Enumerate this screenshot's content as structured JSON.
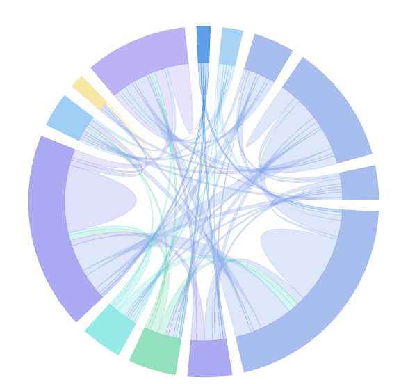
{
  "chart_data": {
    "type": "chord",
    "colors": [
      "#2a7de1",
      "#8cc4f0",
      "#8aa8ea",
      "#8aa8ea",
      "#8aa8ea",
      "#8aa8ea",
      "#8f8ff0",
      "#6dd6a8",
      "#6fe3df",
      "#8f8ff0",
      "#7fbff0",
      "#f5e08a",
      "#a79af0"
    ],
    "matrix": [
      [
        0,
        0,
        0,
        0,
        0,
        1,
        1,
        1,
        0,
        1,
        0,
        0,
        0
      ],
      [
        0,
        0,
        0,
        0,
        0,
        2,
        1,
        0,
        1,
        0,
        1,
        0,
        1
      ],
      [
        0,
        1,
        0,
        0,
        1,
        3,
        0,
        1,
        0,
        3,
        1,
        0,
        2
      ],
      [
        0,
        0,
        0,
        6,
        2,
        8,
        2,
        2,
        1,
        8,
        2,
        1,
        3
      ],
      [
        0,
        0,
        1,
        1,
        0,
        2,
        1,
        1,
        1,
        2,
        1,
        0,
        0
      ],
      [
        1,
        1,
        2,
        6,
        1,
        25,
        3,
        2,
        2,
        12,
        3,
        1,
        6
      ],
      [
        1,
        0,
        1,
        2,
        1,
        3,
        0,
        0,
        0,
        3,
        0,
        0,
        2
      ],
      [
        1,
        1,
        1,
        2,
        1,
        3,
        0,
        0,
        0,
        3,
        1,
        0,
        1
      ],
      [
        1,
        1,
        1,
        1,
        1,
        3,
        0,
        0,
        0,
        2,
        1,
        0,
        1
      ],
      [
        1,
        1,
        2,
        6,
        2,
        10,
        2,
        2,
        1,
        25,
        2,
        1,
        3
      ],
      [
        0,
        1,
        1,
        1,
        1,
        2,
        0,
        1,
        0,
        2,
        0,
        0,
        1
      ],
      [
        0,
        0,
        0,
        1,
        0,
        1,
        0,
        0,
        0,
        1,
        1,
        0,
        0
      ],
      [
        2,
        1,
        2,
        3,
        1,
        5,
        1,
        1,
        1,
        4,
        1,
        0,
        8
      ]
    ]
  }
}
